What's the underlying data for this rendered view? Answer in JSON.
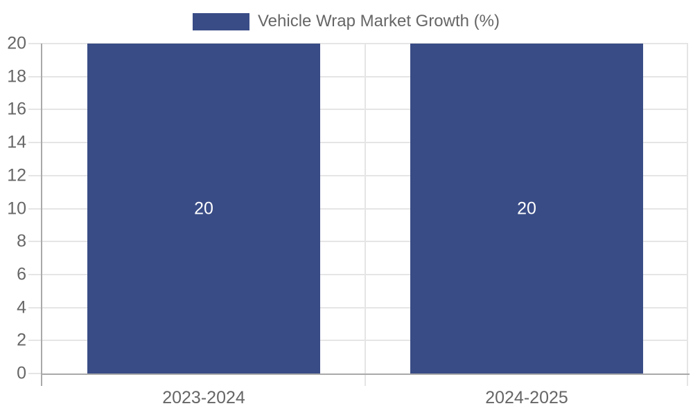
{
  "chart_data": {
    "type": "bar",
    "title": "",
    "categories": [
      "2023-2024",
      "2024-2025"
    ],
    "series": [
      {
        "name": "Vehicle Wrap Market Growth (%)",
        "values": [
          20,
          20
        ]
      }
    ],
    "data_labels": [
      "20",
      "20"
    ],
    "xlabel": "",
    "ylabel": "",
    "ylim": [
      0,
      20
    ],
    "ytick_step": 2,
    "yticks": [
      0,
      2,
      4,
      6,
      8,
      10,
      12,
      14,
      16,
      18,
      20
    ],
    "grid": true,
    "legend_position": "top",
    "bar_color": "#394C86",
    "bar_label_color": "#FFFFFF"
  },
  "colors": {
    "background": "#FFFFFF",
    "grid_line": "#E5E5E5",
    "axis_line": "#A9A9A9",
    "tick_label_text": "#666666",
    "legend_text": "#666666"
  }
}
